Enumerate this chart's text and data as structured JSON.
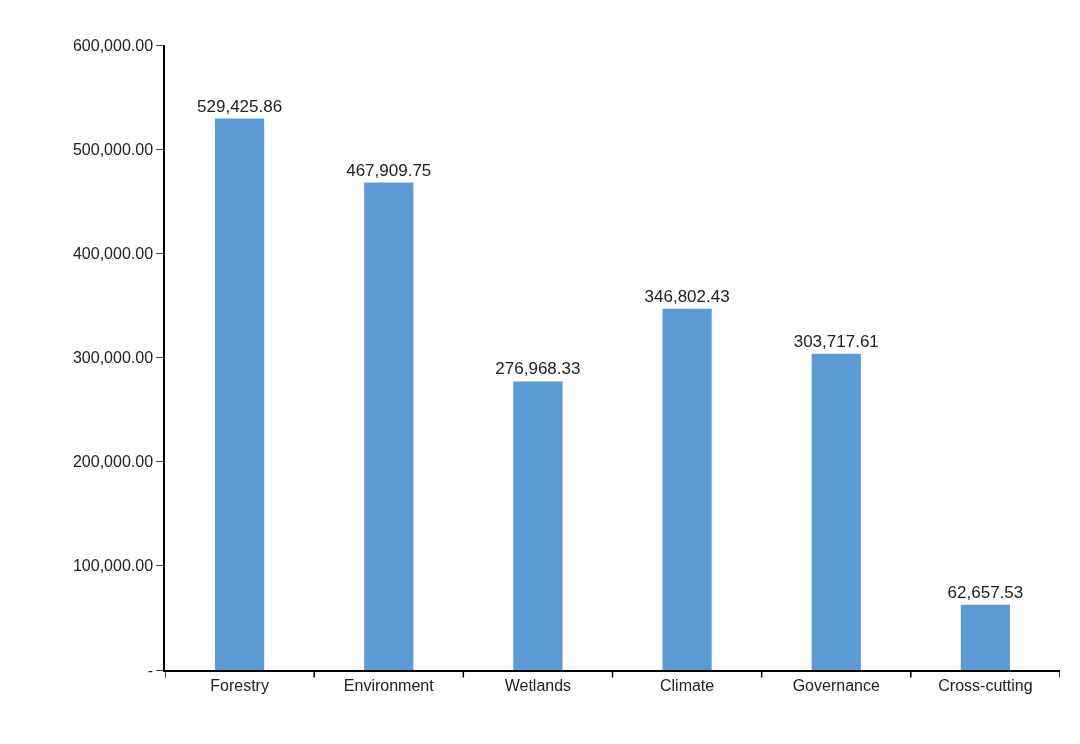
{
  "chart_data": {
    "type": "bar",
    "categories": [
      "Forestry",
      "Environment",
      "Wetlands",
      "Climate",
      "Governance",
      "Cross-cutting"
    ],
    "values": [
      529425.86,
      467909.75,
      276968.33,
      346802.43,
      303717.61,
      62657.53
    ],
    "color": "#5b9bd5",
    "value_labels": [
      "529,425.86",
      "467,909.75",
      "276,968.33",
      "346,802.43",
      "303,717.61",
      "62,657.53"
    ],
    "ylim": [
      0,
      600000
    ],
    "yticks": [
      {
        "value": 0,
        "label": "-"
      },
      {
        "value": 100000,
        "label": "100,000.00"
      },
      {
        "value": 200000,
        "label": "200,000.00"
      },
      {
        "value": 300000,
        "label": "300,000.00"
      },
      {
        "value": 400000,
        "label": "400,000.00"
      },
      {
        "value": 500000,
        "label": "500,000.00"
      },
      {
        "value": 600000,
        "label": "600,000.00"
      }
    ]
  }
}
